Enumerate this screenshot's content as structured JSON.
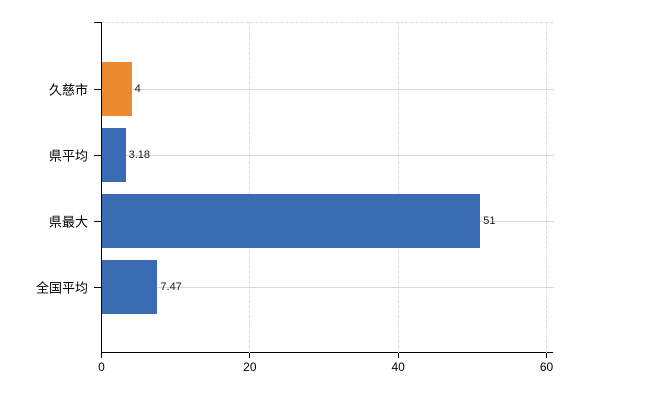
{
  "chart_data": {
    "type": "bar",
    "orientation": "horizontal",
    "title": "",
    "xlabel": "",
    "ylabel": "",
    "categories": [
      "久慈市",
      "県平均",
      "県最大",
      "全国平均"
    ],
    "values": [
      4,
      3.18,
      51,
      7.47
    ],
    "value_labels": [
      "4",
      "3.18",
      "51",
      "7.47"
    ],
    "bar_colors": [
      "#eb8a2f",
      "#3a6cb4",
      "#3a6cb4",
      "#3a6cb4"
    ],
    "xticks": [
      0,
      20,
      40,
      60
    ],
    "xtick_labels": [
      "0",
      "20",
      "40",
      "60"
    ],
    "xlim": [
      0,
      60
    ],
    "grid": true,
    "legend": "none",
    "colors": {
      "bar_orange": "#eb8a2f",
      "bar_blue": "#3a6cb4",
      "gridline": "#d9d9d9",
      "axis": "#000000",
      "text": "#000000",
      "background": "#ffffff"
    }
  }
}
